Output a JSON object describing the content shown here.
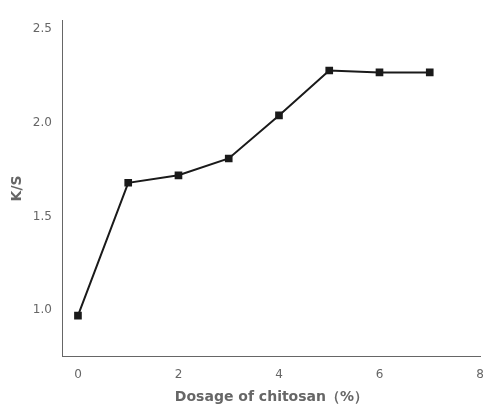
{
  "chart_data": {
    "type": "line",
    "x": [
      0,
      1,
      2,
      3,
      4,
      5,
      6,
      7
    ],
    "values": [
      0.97,
      1.68,
      1.72,
      1.81,
      2.04,
      2.28,
      2.27,
      2.27
    ],
    "color": "#1a1a1a",
    "marker": "square",
    "line_style": "solid",
    "xlabel": "Dosage of chitosan（%）",
    "ylabel": "K/S",
    "xlim": [
      -0.3,
      8.0
    ],
    "ylim": [
      0.75,
      2.55
    ],
    "xticks": [
      0,
      2,
      4,
      6,
      8
    ],
    "yticks": [
      {
        "value": 1.0,
        "label": "1.0"
      },
      1.5,
      {
        "value": 2.0,
        "label": "2.0"
      },
      2.5
    ],
    "grid": false
  }
}
